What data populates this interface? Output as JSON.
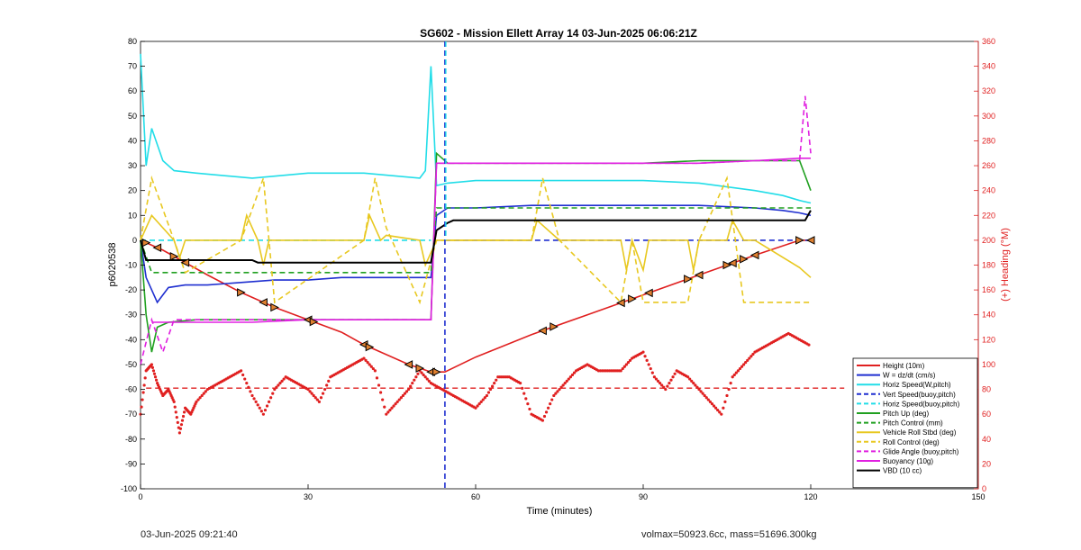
{
  "chart_data": {
    "type": "line",
    "title": "SG602 - Mission Ellett Array 14 03-Jun-2025 06:06:21Z",
    "xlabel": "Time (minutes)",
    "ylabel_left": "p6020538",
    "ylabel_right": "(+) Heading (°M)",
    "xlim": [
      0,
      150
    ],
    "ylim_left": [
      -100,
      80
    ],
    "ylim_right": [
      0,
      360
    ],
    "xticks": [
      "0",
      "30",
      "60",
      "90",
      "120",
      "150"
    ],
    "yticks_left": [
      "80",
      "70",
      "60",
      "50",
      "40",
      "30",
      "20",
      "10",
      "0",
      "-10",
      "-20",
      "-30",
      "-40",
      "-50",
      "-60",
      "-70",
      "-80",
      "-90",
      "-100"
    ],
    "yticks_right": [
      "360",
      "340",
      "320",
      "300",
      "280",
      "260",
      "240",
      "220",
      "200",
      "180",
      "160",
      "140",
      "120",
      "100",
      "80",
      "60",
      "40",
      "20",
      "0"
    ],
    "legend_position": "bottom-right",
    "apogee_minute": 54.5,
    "series": [
      {
        "name": "Height (10m)",
        "color": "#e02020",
        "style": "solid",
        "x": [
          0,
          4,
          8,
          12,
          18,
          24,
          30,
          36,
          40,
          44,
          48,
          52,
          54.5,
          60,
          70,
          80,
          90,
          100,
          110,
          118,
          120
        ],
        "y": [
          0,
          -4,
          -9,
          -14,
          -21,
          -27,
          -32,
          -37,
          -42,
          -46,
          -50,
          -53,
          -53,
          -47,
          -38,
          -30,
          -22,
          -14,
          -6,
          0,
          0
        ]
      },
      {
        "name": "W = dz/dt (cm/s)",
        "color": "#1f2fd0",
        "style": "solid",
        "x": [
          0,
          1,
          2,
          3,
          5,
          8,
          12,
          18,
          24,
          30,
          36,
          42,
          48,
          52,
          53,
          55,
          60,
          70,
          80,
          90,
          100,
          110,
          115,
          118,
          120
        ],
        "y": [
          0,
          -15,
          -20,
          -25,
          -19,
          -18,
          -18,
          -17,
          -16,
          -16,
          -15,
          -15,
          -15,
          -15,
          10,
          13,
          13,
          14,
          14,
          14,
          14,
          13,
          12,
          11,
          10
        ]
      },
      {
        "name": "Horiz Speed(W,pitch)",
        "color": "#22dde8",
        "style": "solid",
        "x": [
          0,
          1,
          2,
          4,
          6,
          10,
          20,
          30,
          40,
          50,
          51,
          52,
          53,
          55,
          60,
          70,
          80,
          90,
          100,
          110,
          115,
          118,
          120
        ],
        "y": [
          75,
          30,
          45,
          32,
          28,
          27,
          25,
          27,
          27,
          25,
          28,
          70,
          22,
          23,
          24,
          24,
          24,
          24,
          23,
          20,
          18,
          16,
          15
        ]
      },
      {
        "name": "Vert Speed(buoy,pitch)",
        "color": "#1f2fd0",
        "style": "dashed",
        "x": [
          54.5,
          60,
          70,
          80,
          90,
          100,
          110,
          120
        ],
        "y": [
          0,
          0,
          0,
          0,
          0,
          0,
          0,
          0
        ]
      },
      {
        "name": "Horiz Speed(buoy,pitch)",
        "color": "#22dde8",
        "style": "dashed",
        "x": [
          0,
          52
        ],
        "y": [
          0,
          0
        ]
      },
      {
        "name": "Pitch Up (deg)",
        "color": "#20a020",
        "style": "solid",
        "x": [
          0,
          1,
          2,
          3,
          5,
          10,
          20,
          30,
          40,
          50,
          52,
          53,
          55,
          60,
          70,
          80,
          90,
          100,
          110,
          118,
          120
        ],
        "y": [
          0,
          -30,
          -45,
          -35,
          -33,
          -32,
          -32,
          -32,
          -32,
          -32,
          -32,
          35,
          31,
          31,
          31,
          31,
          31,
          32,
          32,
          32,
          20
        ]
      },
      {
        "name": "Pitch Control (mm)",
        "color": "#20a020",
        "style": "dashed",
        "x": [
          0,
          2,
          52,
          53,
          120
        ],
        "y": [
          0,
          -13,
          -13,
          13,
          13
        ]
      },
      {
        "name": "Vehicle Roll Stbd (deg)",
        "color": "#e8c820",
        "style": "solid",
        "x": [
          0,
          2,
          6,
          7,
          8,
          18,
          19,
          21,
          22,
          23,
          40,
          41,
          43,
          44,
          50,
          51,
          52,
          53,
          60,
          70,
          71,
          75,
          86,
          87,
          88,
          90,
          91,
          98,
          99,
          100,
          105,
          106,
          108,
          110,
          118,
          120
        ],
        "y": [
          0,
          10,
          0,
          -7,
          0,
          0,
          10,
          0,
          -10,
          0,
          0,
          10,
          0,
          2,
          0,
          -10,
          -5,
          0,
          0,
          0,
          8,
          0,
          0,
          -12,
          0,
          -12,
          0,
          0,
          -12,
          0,
          0,
          8,
          0,
          0,
          -11,
          -15
        ]
      },
      {
        "name": "Roll Control (deg)",
        "color": "#e8c820",
        "style": "dashed",
        "x": [
          0,
          2,
          6,
          8,
          18,
          22,
          24,
          40,
          42,
          44,
          50,
          53,
          60,
          70,
          72,
          75,
          86,
          88,
          90,
          98,
          100,
          105,
          108,
          110,
          118,
          120
        ],
        "y": [
          0,
          25,
          0,
          -13,
          0,
          25,
          -25,
          0,
          25,
          5,
          -25,
          0,
          0,
          0,
          25,
          0,
          -25,
          0,
          -25,
          -25,
          0,
          25,
          -25,
          -25,
          -25,
          -25
        ]
      },
      {
        "name": "Glide Angle (buoy,pitch)",
        "color": "#e020e0",
        "style": "dashed",
        "x": [
          0,
          2,
          4,
          6,
          10,
          20,
          30,
          40,
          50,
          52,
          53,
          60,
          70,
          80,
          90,
          100,
          110,
          118,
          119,
          120
        ],
        "y": [
          -50,
          -32,
          -45,
          -32,
          -32,
          -32,
          -32,
          -32,
          -32,
          -32,
          31,
          31,
          31,
          31,
          31,
          31,
          32,
          32,
          58,
          35
        ]
      },
      {
        "name": "Buoyancy (10g)",
        "color": "#e020e0",
        "style": "solid",
        "x": [
          2,
          10,
          20,
          30,
          40,
          50,
          52,
          53,
          60,
          70,
          80,
          90,
          100,
          110,
          118,
          120
        ],
        "y": [
          -33,
          -33,
          -33,
          -32,
          -32,
          -32,
          -32,
          31,
          31,
          31,
          31,
          31,
          31,
          32,
          33,
          33
        ]
      },
      {
        "name": "VBD (10 cc)",
        "color": "#000000",
        "style": "solid",
        "x": [
          0,
          1,
          20,
          21,
          52,
          53,
          55,
          56,
          60,
          61,
          119,
          120
        ],
        "y": [
          0,
          -8,
          -8,
          -9,
          -9,
          4,
          7,
          8,
          8,
          8,
          8,
          12
        ]
      }
    ],
    "heading": {
      "name": "(+) Heading (°M)",
      "color": "#e02020",
      "axis": "right",
      "target": 81,
      "x": [
        0,
        1,
        2,
        3,
        4,
        5,
        6,
        7,
        8,
        9,
        10,
        12,
        14,
        16,
        18,
        20,
        22,
        24,
        26,
        28,
        30,
        32,
        34,
        36,
        38,
        40,
        42,
        44,
        46,
        48,
        50,
        52,
        54,
        56,
        58,
        60,
        62,
        64,
        66,
        68,
        70,
        72,
        74,
        76,
        78,
        80,
        82,
        84,
        86,
        88,
        90,
        92,
        94,
        96,
        98,
        100,
        102,
        104,
        106,
        108,
        110,
        112,
        114,
        116,
        118,
        120
      ],
      "y": [
        60,
        95,
        100,
        85,
        75,
        80,
        70,
        45,
        65,
        60,
        70,
        80,
        85,
        90,
        95,
        75,
        60,
        80,
        90,
        85,
        80,
        70,
        90,
        95,
        100,
        105,
        95,
        60,
        70,
        80,
        95,
        85,
        80,
        75,
        70,
        65,
        75,
        90,
        90,
        85,
        60,
        55,
        75,
        85,
        95,
        100,
        95,
        95,
        95,
        105,
        110,
        90,
        80,
        95,
        90,
        80,
        70,
        60,
        90,
        100,
        110,
        115,
        120,
        125,
        120,
        115
      ]
    },
    "footer_left": "03-Jun-2025 09:21:40",
    "footer_right": "volmax=50923.6cc, mass=51696.300kg"
  }
}
